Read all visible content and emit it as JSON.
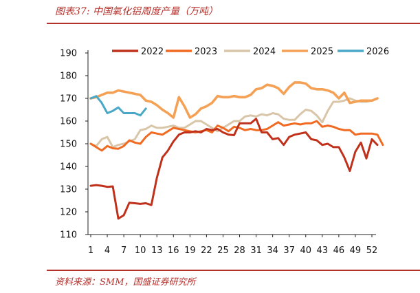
{
  "title": "图表37: 中国氧化铝周度产量（万吨）",
  "source": "资料来源：SMM，国盛证券研究所",
  "chart_data": {
    "type": "line",
    "title": "中国氧化铝周度产量（万吨）",
    "xlabel": "",
    "ylabel": "",
    "ylim": [
      110,
      190
    ],
    "yticks": [
      110,
      120,
      130,
      140,
      150,
      160,
      170,
      180,
      190
    ],
    "xlim": [
      1,
      52
    ],
    "xticks": [
      1,
      4,
      7,
      10,
      13,
      16,
      19,
      22,
      25,
      28,
      31,
      34,
      37,
      40,
      43,
      46,
      49,
      52
    ],
    "legend_position": "top",
    "series": [
      {
        "name": "2022",
        "color": "#c0311b",
        "values": [
          131.5,
          131.8,
          131.5,
          131,
          131.2,
          117,
          118.5,
          124,
          123.8,
          123.5,
          123.8,
          123,
          135,
          144,
          147,
          151,
          154,
          155,
          155,
          155.5,
          155,
          156.5,
          156,
          156.5,
          155,
          154,
          153.8,
          159,
          159,
          159,
          161,
          155,
          155,
          152,
          152.5,
          149.5,
          153,
          154,
          154.5,
          155,
          152,
          151.5,
          149.5,
          150,
          148.5,
          148.5,
          144,
          138,
          146.5,
          150.5,
          143.5,
          152,
          149.5
        ]
      },
      {
        "name": "2023",
        "color": "#f06a22",
        "values": [
          150,
          148.5,
          147,
          149,
          148,
          147.8,
          149,
          151.5,
          150.5,
          150,
          153,
          155,
          154.5,
          154,
          155.5,
          157,
          156.5,
          156,
          155.5,
          155,
          155.5,
          156,
          155,
          158,
          157,
          155.5,
          157.5,
          157,
          156,
          156.5,
          156,
          156,
          156.5,
          158,
          159.5,
          158,
          158.5,
          159,
          158.5,
          159,
          159,
          160,
          157.5,
          158,
          157.5,
          156.5,
          156,
          156,
          154,
          154.5,
          154.5,
          154.5,
          154,
          149.5
        ]
      },
      {
        "name": "2024",
        "color": "#d9c5a8",
        "values": [
          150,
          149,
          152,
          153,
          148.5,
          149.5,
          150,
          151,
          152,
          156,
          156.5,
          158,
          157,
          157,
          157.5,
          158,
          157,
          157,
          158.5,
          160,
          160,
          158.5,
          157,
          155.5,
          157,
          158.5,
          160,
          160,
          162,
          162.5,
          162,
          163,
          162.5,
          163.5,
          163,
          161,
          160.5,
          160.5,
          163,
          165,
          164.5,
          162.5,
          159.5,
          164.5,
          168.5,
          168.5,
          169,
          170,
          169,
          168.5,
          168.5,
          169,
          170
        ]
      },
      {
        "name": "2025",
        "color": "#f5a155",
        "values": [
          170,
          170.5,
          171.5,
          172.5,
          172.5,
          173.5,
          173,
          172.5,
          172,
          171.5,
          169,
          168.5,
          167,
          165,
          163.5,
          161.5,
          170.5,
          166.5,
          161.5,
          163,
          165.5,
          166.5,
          168,
          171,
          170.5,
          170.5,
          171,
          170.5,
          170.5,
          171.5,
          174,
          174.5,
          176,
          175.5,
          174.5,
          172,
          175,
          177,
          177,
          176.5,
          174.5,
          174,
          174,
          173.5,
          172.5,
          170,
          172.5,
          168,
          168.5,
          169,
          169,
          169,
          170
        ]
      },
      {
        "name": "2026",
        "color": "#4aa8c6",
        "values": [
          170,
          171,
          168,
          163.5,
          164.5,
          166,
          163.5,
          163.5,
          163.5,
          162.5,
          165.5
        ]
      }
    ]
  }
}
